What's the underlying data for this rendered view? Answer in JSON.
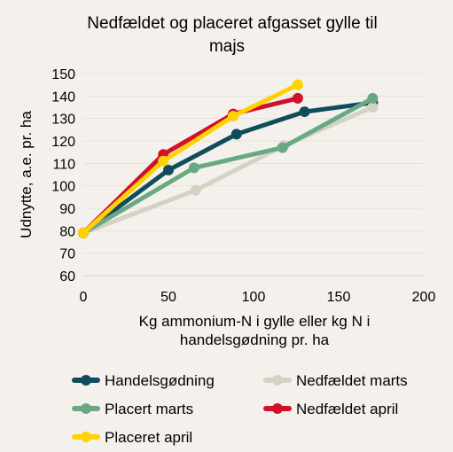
{
  "chart_data": {
    "type": "line",
    "title_lines": [
      "Nedfældet og placeret afgasset gylle til",
      "majs"
    ],
    "xlabel_lines": [
      "Kg ammonium-N i gylle eller kg N i",
      "handelsgødning pr. ha"
    ],
    "ylabel": "Udnytte, a.e. pr. ha",
    "xlim": [
      0,
      200
    ],
    "ylim": [
      60,
      150
    ],
    "xticks": [
      0,
      50,
      100,
      150,
      200
    ],
    "yticks": [
      60,
      70,
      80,
      90,
      100,
      110,
      120,
      130,
      140,
      150
    ],
    "grid": "horizontal",
    "legend_position": "bottom",
    "series": [
      {
        "name": "Handelsgødning",
        "color": "#0f4c5c",
        "x": [
          0,
          50,
          90,
          130,
          170
        ],
        "y": [
          79,
          107,
          123,
          133,
          137
        ]
      },
      {
        "name": "Nedfældet marts",
        "color": "#d2d2c5",
        "x": [
          0,
          66,
          118,
          170
        ],
        "y": [
          79,
          98,
          118,
          135
        ]
      },
      {
        "name": "Placert marts",
        "color": "#6aa883",
        "x": [
          0,
          65,
          117,
          170
        ],
        "y": [
          79,
          108,
          117,
          139
        ]
      },
      {
        "name": "Nedfældet april",
        "color": "#d0112b",
        "x": [
          0,
          47,
          88,
          126
        ],
        "y": [
          79,
          114,
          132,
          139
        ]
      },
      {
        "name": "Placeret april",
        "color": "#ffd200",
        "x": [
          0,
          47,
          88,
          126
        ],
        "y": [
          79,
          111,
          131,
          145
        ]
      }
    ]
  }
}
